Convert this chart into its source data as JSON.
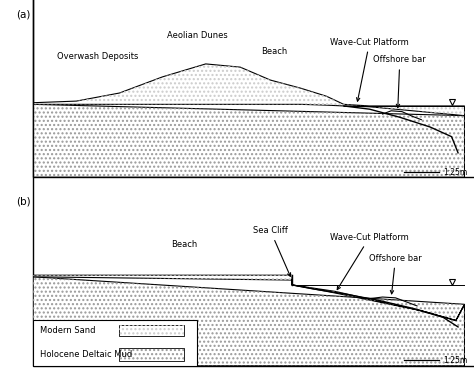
{
  "fig_width": 4.74,
  "fig_height": 3.85,
  "dpi": 100,
  "bg_color": "#ffffff",
  "panel_a_label": "(a)",
  "panel_b_label": "(b)",
  "scale_text": "1:25m"
}
